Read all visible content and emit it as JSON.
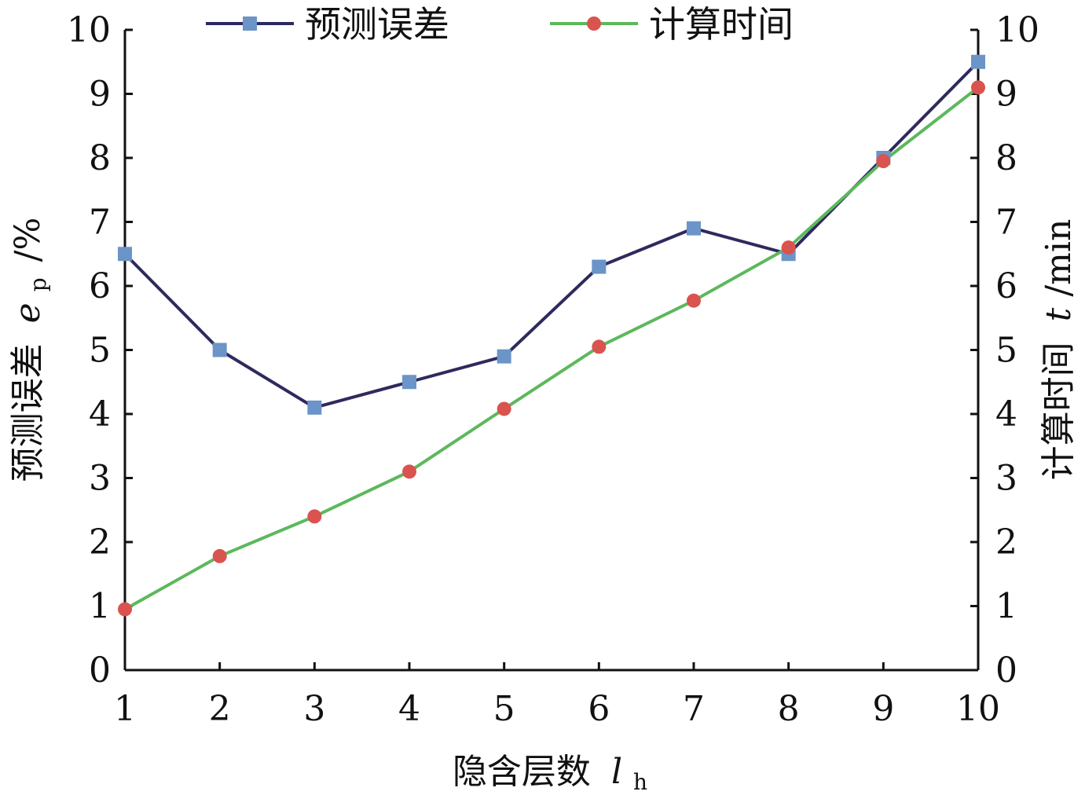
{
  "chart_data": {
    "type": "line",
    "x": [
      1,
      2,
      3,
      4,
      5,
      6,
      7,
      8,
      9,
      10
    ],
    "xlabel": "隐含层数",
    "xlabel_var": "l",
    "xlabel_sub": "h",
    "ylabel_left": "预测误差",
    "ylabel_left_var": "e",
    "ylabel_left_sub": "p",
    "ylabel_left_unit": "/%",
    "ylabel_right": "计算时间",
    "ylabel_right_var": "t",
    "ylabel_right_unit": "/min",
    "xlim": [
      1,
      10
    ],
    "ylim_left": [
      0,
      10
    ],
    "ylim_right": [
      0,
      10
    ],
    "xticks": [
      "1",
      "2",
      "3",
      "4",
      "5",
      "6",
      "7",
      "8",
      "9",
      "10"
    ],
    "yticks_left": [
      "0",
      "1",
      "2",
      "3",
      "4",
      "5",
      "6",
      "7",
      "8",
      "9",
      "10"
    ],
    "yticks_right": [
      "0",
      "1",
      "2",
      "3",
      "4",
      "5",
      "6",
      "7",
      "8",
      "9",
      "10"
    ],
    "grid": false,
    "legend_position": "top",
    "series": [
      {
        "name": "预测误差",
        "axis": "left",
        "marker": "square",
        "line_color": "#2e2a5e",
        "marker_color": "#6b94c8",
        "values": [
          6.5,
          5.0,
          4.1,
          4.5,
          4.9,
          6.3,
          6.9,
          6.5,
          8.0,
          9.5
        ]
      },
      {
        "name": "计算时间",
        "axis": "right",
        "marker": "circle",
        "line_color": "#5cb85c",
        "marker_color": "#d9534f",
        "values": [
          0.95,
          1.78,
          2.4,
          3.1,
          4.08,
          5.05,
          5.77,
          6.6,
          7.95,
          9.1
        ]
      }
    ]
  }
}
